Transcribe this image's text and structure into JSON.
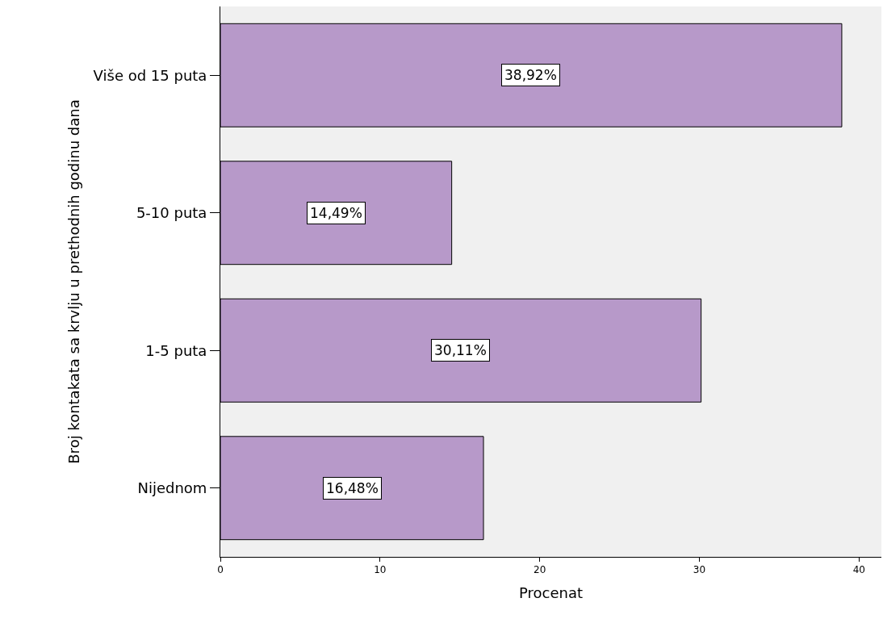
{
  "chart_data": {
    "type": "bar",
    "orientation": "horizontal",
    "ylabel": "Broj kontakata sa krvlju u prethodnih godinu dana",
    "xlabel": "Procenat",
    "categories": [
      "Više od 15 puta",
      "5-10 puta",
      "1-5 puta",
      "Nijednom"
    ],
    "values": [
      38.92,
      14.49,
      30.11,
      16.48
    ],
    "value_labels": [
      "38,92%",
      "14,49%",
      "30,11%",
      "16,48%"
    ],
    "color": "#b799c9",
    "xlim": [
      0,
      41.4
    ],
    "xticks": [
      0,
      10,
      20,
      30,
      40
    ],
    "grid": false,
    "legend": false
  }
}
